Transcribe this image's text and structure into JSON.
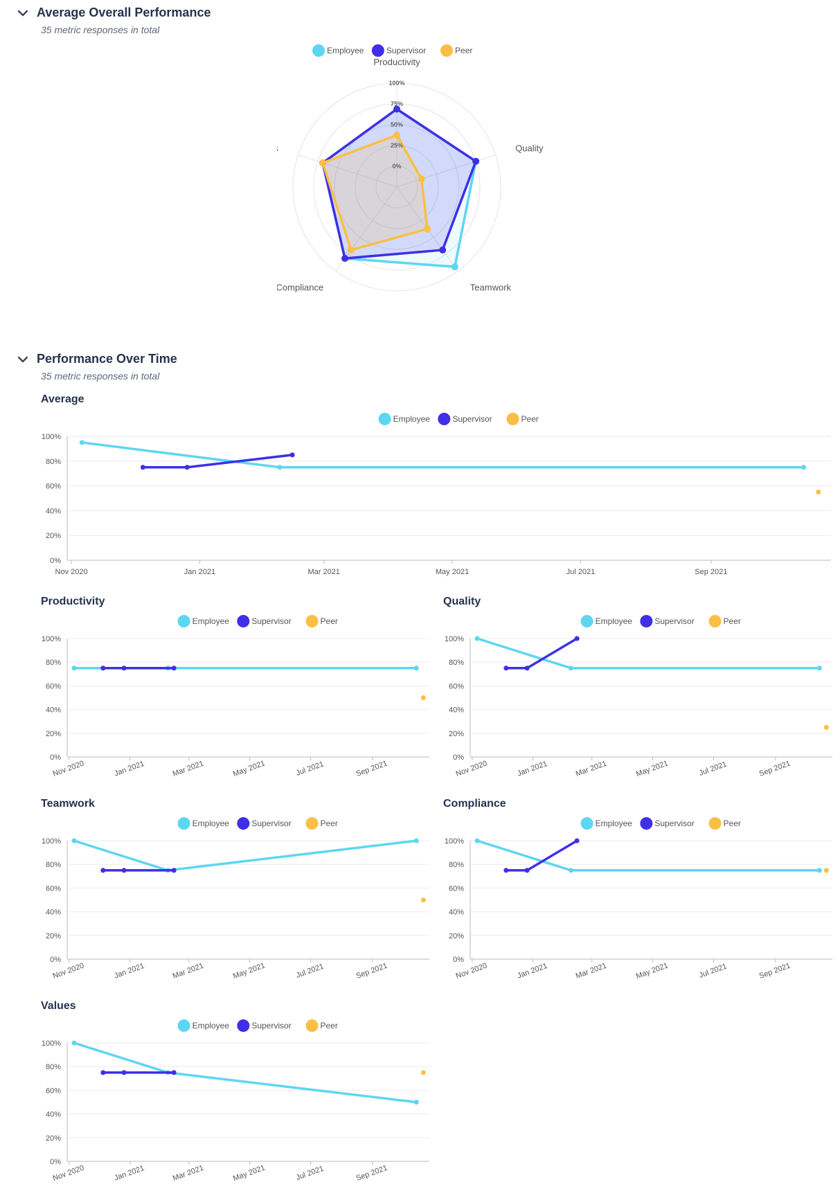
{
  "sections": {
    "overall": {
      "title": "Average Overall Performance",
      "subtitle": "35 metric responses in total"
    },
    "over_time": {
      "title": "Performance Over Time",
      "subtitle": "35 metric responses in total"
    }
  },
  "icons": {
    "collapse": "chevron-down-icon"
  },
  "colors": {
    "Employee": "#5dd6f2",
    "Supervisor": "#3f2fe6",
    "Peer": "#fbbf45"
  },
  "legend": [
    "Employee",
    "Supervisor",
    "Peer"
  ],
  "chart_data": [
    {
      "type": "radar",
      "title": "",
      "axes": [
        "Productivity",
        "Quality",
        "Teamwork",
        "Compliance",
        "Values"
      ],
      "scale_ticks": [
        "0%",
        "25%",
        "50%",
        "75%",
        "100%"
      ],
      "range": [
        0,
        100
      ],
      "series": [
        {
          "name": "Employee",
          "values": [
            75,
            80,
            95,
            85,
            75
          ]
        },
        {
          "name": "Supervisor",
          "values": [
            75,
            80,
            75,
            85,
            75
          ]
        },
        {
          "name": "Peer",
          "values": [
            50,
            25,
            50,
            75,
            75
          ]
        }
      ]
    },
    {
      "type": "line",
      "title": "Average",
      "x_ticks": [
        "Nov 2020",
        "Jan 2021",
        "Mar 2021",
        "May 2021",
        "Jul 2021",
        "Sep 2021"
      ],
      "y_ticks": [
        "0%",
        "20%",
        "40%",
        "60%",
        "80%",
        "100%"
      ],
      "ylim": [
        0,
        100
      ],
      "series": [
        {
          "name": "Employee",
          "x": [
            "2020-11-06",
            "2021-02-08",
            "2021-10-15"
          ],
          "values": [
            95,
            75,
            75
          ]
        },
        {
          "name": "Supervisor",
          "x": [
            "2020-12-05",
            "2020-12-26",
            "2021-02-14"
          ],
          "values": [
            75,
            75,
            85
          ]
        },
        {
          "name": "Peer",
          "x": [
            "2021-10-22"
          ],
          "values": [
            55
          ]
        }
      ]
    },
    {
      "type": "line",
      "title": "Productivity",
      "x_ticks": [
        "Nov 2020",
        "Jan 2021",
        "Mar 2021",
        "May 2021",
        "Jul 2021",
        "Sep 2021"
      ],
      "y_ticks": [
        "0%",
        "20%",
        "40%",
        "60%",
        "80%",
        "100%"
      ],
      "ylim": [
        0,
        100
      ],
      "series": [
        {
          "name": "Employee",
          "x": [
            "2020-11-06",
            "2021-02-08",
            "2021-10-15"
          ],
          "values": [
            75,
            75,
            75
          ]
        },
        {
          "name": "Supervisor",
          "x": [
            "2020-12-05",
            "2020-12-26",
            "2021-02-14"
          ],
          "values": [
            75,
            75,
            75
          ]
        },
        {
          "name": "Peer",
          "x": [
            "2021-10-22"
          ],
          "values": [
            50
          ]
        }
      ]
    },
    {
      "type": "line",
      "title": "Quality",
      "x_ticks": [
        "Nov 2020",
        "Jan 2021",
        "Mar 2021",
        "May 2021",
        "Jul 2021",
        "Sep 2021"
      ],
      "y_ticks": [
        "0%",
        "20%",
        "40%",
        "60%",
        "80%",
        "100%"
      ],
      "ylim": [
        0,
        100
      ],
      "series": [
        {
          "name": "Employee",
          "x": [
            "2020-11-06",
            "2021-02-08",
            "2021-10-15"
          ],
          "values": [
            100,
            75,
            75
          ]
        },
        {
          "name": "Supervisor",
          "x": [
            "2020-12-05",
            "2020-12-26",
            "2021-02-14"
          ],
          "values": [
            75,
            75,
            100
          ]
        },
        {
          "name": "Peer",
          "x": [
            "2021-10-22"
          ],
          "values": [
            25
          ]
        }
      ]
    },
    {
      "type": "line",
      "title": "Teamwork",
      "x_ticks": [
        "Nov 2020",
        "Jan 2021",
        "Mar 2021",
        "May 2021",
        "Jul 2021",
        "Sep 2021"
      ],
      "y_ticks": [
        "0%",
        "20%",
        "40%",
        "60%",
        "80%",
        "100%"
      ],
      "ylim": [
        0,
        100
      ],
      "series": [
        {
          "name": "Employee",
          "x": [
            "2020-11-06",
            "2021-02-08",
            "2021-10-15"
          ],
          "values": [
            100,
            75,
            100
          ]
        },
        {
          "name": "Supervisor",
          "x": [
            "2020-12-05",
            "2020-12-26",
            "2021-02-14"
          ],
          "values": [
            75,
            75,
            75
          ]
        },
        {
          "name": "Peer",
          "x": [
            "2021-10-22"
          ],
          "values": [
            50
          ]
        }
      ]
    },
    {
      "type": "line",
      "title": "Compliance",
      "x_ticks": [
        "Nov 2020",
        "Jan 2021",
        "Mar 2021",
        "May 2021",
        "Jul 2021",
        "Sep 2021"
      ],
      "y_ticks": [
        "0%",
        "20%",
        "40%",
        "60%",
        "80%",
        "100%"
      ],
      "ylim": [
        0,
        100
      ],
      "series": [
        {
          "name": "Employee",
          "x": [
            "2020-11-06",
            "2021-02-08",
            "2021-10-15"
          ],
          "values": [
            100,
            75,
            75
          ]
        },
        {
          "name": "Supervisor",
          "x": [
            "2020-12-05",
            "2020-12-26",
            "2021-02-14"
          ],
          "values": [
            75,
            75,
            100
          ]
        },
        {
          "name": "Peer",
          "x": [
            "2021-10-22"
          ],
          "values": [
            75
          ]
        }
      ]
    },
    {
      "type": "line",
      "title": "Values",
      "x_ticks": [
        "Nov 2020",
        "Jan 2021",
        "Mar 2021",
        "May 2021",
        "Jul 2021",
        "Sep 2021"
      ],
      "y_ticks": [
        "0%",
        "20%",
        "40%",
        "60%",
        "80%",
        "100%"
      ],
      "ylim": [
        0,
        100
      ],
      "series": [
        {
          "name": "Employee",
          "x": [
            "2020-11-06",
            "2021-02-08",
            "2021-10-15"
          ],
          "values": [
            100,
            75,
            50
          ]
        },
        {
          "name": "Supervisor",
          "x": [
            "2020-12-05",
            "2020-12-26",
            "2021-02-14"
          ],
          "values": [
            75,
            75,
            75
          ]
        },
        {
          "name": "Peer",
          "x": [
            "2021-10-22"
          ],
          "values": [
            75
          ]
        }
      ]
    }
  ]
}
